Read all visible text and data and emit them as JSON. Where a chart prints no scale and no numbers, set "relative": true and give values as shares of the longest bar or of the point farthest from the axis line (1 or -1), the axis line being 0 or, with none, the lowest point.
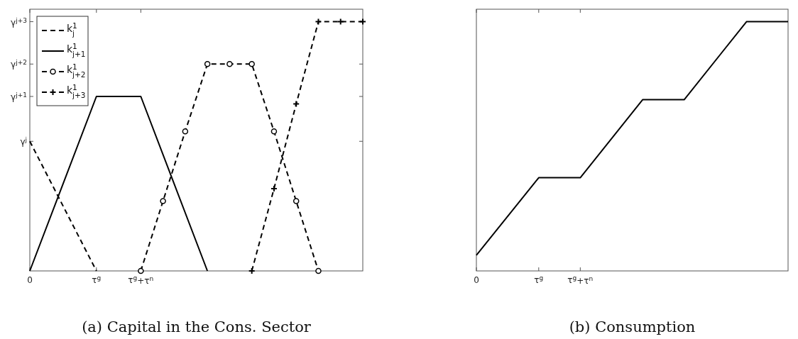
{
  "chart_data": [
    {
      "type": "line",
      "title": "(a) Capital in the Cons. Sector",
      "relative": true,
      "categories": [
        "0",
        null,
        null,
        "τ$^{g}$",
        null,
        "τ$^{g}$+τ$^{n}$",
        null,
        null,
        null,
        null,
        null,
        null,
        null,
        null,
        null,
        null
      ],
      "annotations": [
        "γ$^{j}$",
        "γ$^{j+1}$",
        "γ$^{j+2}$",
        "γ$^{j+3}$"
      ],
      "grid": false,
      "legend": "top left",
      "series": [
        {
          "name": "k$^{1}$$_{j}$",
          "color": "#000000",
          "line_style": "dashed",
          "marker": "none",
          "values": [
            0.52,
            null,
            null,
            0,
            null,
            null,
            null,
            null,
            null,
            null,
            null,
            null,
            null,
            null,
            null,
            null
          ]
        },
        {
          "name": "k$^{1}$$_{j+1}$",
          "color": "#000000",
          "line_style": "solid",
          "marker": "none",
          "values": [
            0,
            null,
            null,
            0.7,
            null,
            0.7,
            null,
            null,
            0,
            null,
            null,
            null,
            null,
            null,
            null,
            null
          ]
        },
        {
          "name": "k$^{1}$$_{j+2}$",
          "color": "#000000",
          "line_style": "dashed",
          "marker": "circle",
          "values": [
            null,
            null,
            null,
            null,
            null,
            0,
            0.28,
            0.56,
            0.83,
            0.83,
            0.83,
            0.56,
            0.28,
            0,
            null,
            null
          ]
        },
        {
          "name": "k$^{1}$$_{j+3}$",
          "color": "#000000",
          "line_style": "dashed",
          "marker": "cross",
          "values": [
            null,
            null,
            null,
            null,
            null,
            null,
            null,
            null,
            null,
            null,
            0,
            0.33,
            0.67,
            1,
            1,
            1
          ]
        }
      ]
    },
    {
      "type": "line",
      "title": "(b) Consumption",
      "relative": true,
      "categories": [
        "0",
        null,
        null,
        "τ$^{g}$",
        null,
        "τ$^{g}$+τ$^{n}$",
        null,
        null,
        null,
        null,
        null,
        null,
        null,
        null,
        null,
        null
      ],
      "grid": false,
      "legend": false,
      "series": [
        {
          "color": "#000000",
          "line_style": "solid",
          "marker": "none",
          "values": [
            0.063,
            null,
            null,
            0.374,
            null,
            0.374,
            null,
            null,
            0.687,
            null,
            0.687,
            null,
            null,
            1,
            null,
            1
          ]
        }
      ]
    }
  ]
}
